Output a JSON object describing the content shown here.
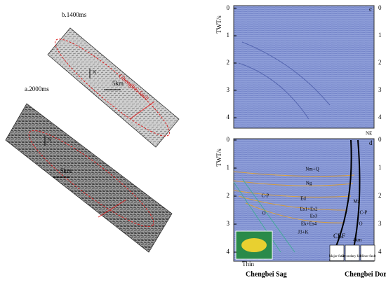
{
  "left": {
    "panel_b": {
      "label": "b.1400ms",
      "north": "N",
      "scale": "5km",
      "fault": "Chengbei fault"
    },
    "panel_a": {
      "label": "a.2000ms",
      "north": "N",
      "scale": "5km"
    }
  },
  "right": {
    "axis_title": "TWT/s",
    "ticks": [
      0,
      1,
      2,
      3,
      4
    ],
    "panel_c": {
      "label": "c"
    },
    "direction": "NE",
    "panel_d": {
      "label": "d",
      "units": [
        "Nm+Q",
        "Ng",
        "Ed",
        "Es1+Es2",
        "Es3",
        "Ek+Es4",
        "J3+K",
        "C-P",
        "O",
        "Mz",
        "C-P",
        "O"
      ],
      "fault_label": "CBF",
      "scale": "4km",
      "thin": "Thin",
      "sag": "Chengbei Sag",
      "dome": "Chengbei Dome",
      "legend": [
        "Major fault",
        "Secondary fault",
        "Minor fault"
      ]
    }
  }
}
